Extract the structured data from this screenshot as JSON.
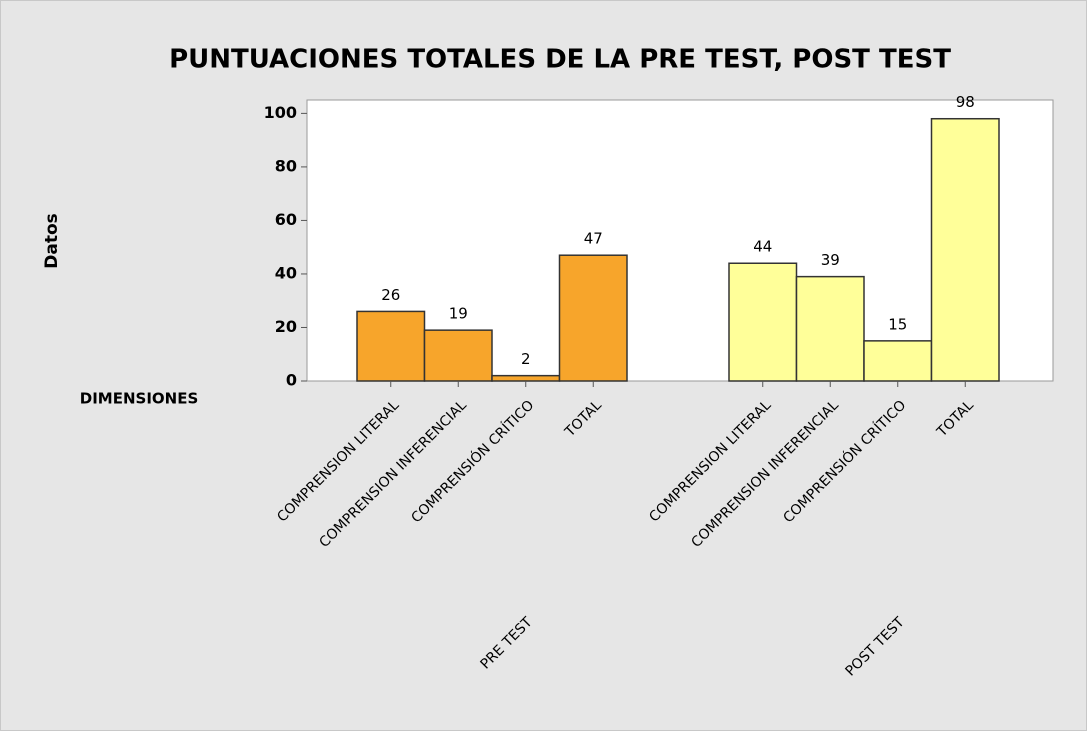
{
  "chart_data": {
    "type": "bar",
    "title": "PUNTUACIONES TOTALES DE LA PRE TEST, POST TEST",
    "y_label": "Datos",
    "x_label": "DIMENSIONES",
    "groups": [
      {
        "name": "PRE TEST",
        "color": "#f7a52b",
        "categories": [
          "COMPRENSION LITERAL",
          "COMPRENSION INFERENCIAL",
          "COMPRENSIÓN CRÍTICO",
          "TOTAL"
        ],
        "values": [
          26,
          19,
          2,
          47
        ]
      },
      {
        "name": "POST TEST",
        "color": "#ffff99",
        "categories": [
          "COMPRENSION LITERAL",
          "COMPRENSION INFERENCIAL",
          "COMPRENSIÓN CRÍTICO",
          "TOTAL"
        ],
        "values": [
          44,
          39,
          15,
          98
        ]
      }
    ],
    "ylim": [
      0,
      105
    ],
    "yticks": [
      0,
      20,
      40,
      60,
      80,
      100
    ]
  }
}
